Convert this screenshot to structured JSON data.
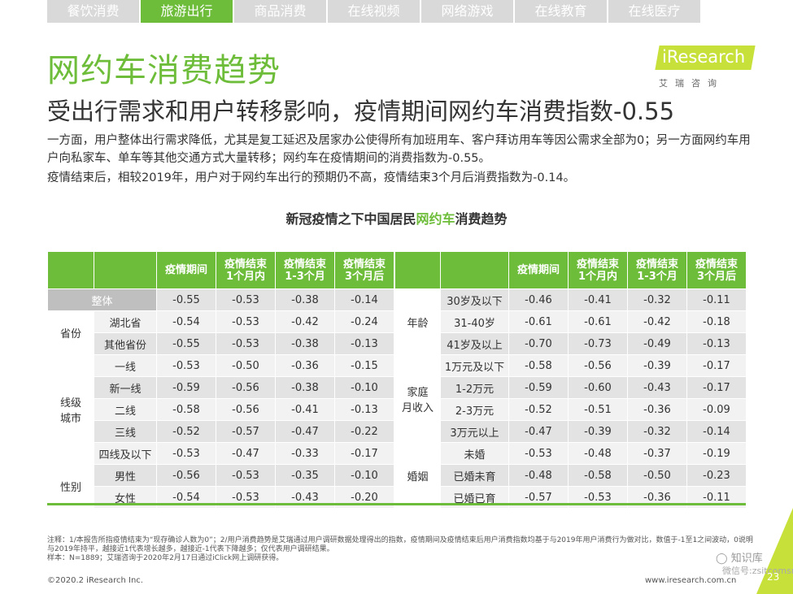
{
  "tabs": [
    {
      "label": "餐饮消费",
      "active": false
    },
    {
      "label": "旅游出行",
      "active": true
    },
    {
      "label": "商品消费",
      "active": false
    },
    {
      "label": "在线视频",
      "active": false
    },
    {
      "label": "网络游戏",
      "active": false
    },
    {
      "label": "在线教育",
      "active": false
    },
    {
      "label": "在线医疗",
      "active": false
    }
  ],
  "title": "网约车消费趋势",
  "subtitle": "受出行需求和用户转移影响，疫情期间网约车消费指数-0.55",
  "logo": {
    "name": "iResearch",
    "cn": "艾瑞咨询"
  },
  "paragraphs": [
    "一方面，用户整体出行需求降低，尤其是复工延迟及居家办公使得所有加班用车、客户拜访用车等因公需求全部为0；另一方面网约车用户向私家车、单车等其他交通方式大量转移；网约车在疫情期间的消费指数为-0.55。",
    "疫情结束后，相较2019年，用户对于网约车出行的预期仍不高，疫情结束3个月后消费指数为-0.14。"
  ],
  "chart_title": {
    "pre": "新冠疫情之下中国居民",
    "highlight": "网约车",
    "post": "消费趋势"
  },
  "headers": [
    "疫情期间",
    "疫情结束\n1个月内",
    "疫情结束\n1-3个月",
    "疫情结束\n3个月后"
  ],
  "left_table": {
    "overall": {
      "label": "整体",
      "values": [
        "-0.55",
        "-0.53",
        "-0.38",
        "-0.14"
      ]
    },
    "groups": [
      {
        "group": "省份",
        "rows": [
          {
            "label": "湖北省",
            "values": [
              "-0.54",
              "-0.53",
              "-0.42",
              "-0.24"
            ]
          },
          {
            "label": "其他省份",
            "values": [
              "-0.55",
              "-0.53",
              "-0.38",
              "-0.13"
            ]
          }
        ]
      },
      {
        "group": "线级\n城市",
        "rows": [
          {
            "label": "一线",
            "values": [
              "-0.53",
              "-0.50",
              "-0.36",
              "-0.15"
            ]
          },
          {
            "label": "新一线",
            "values": [
              "-0.59",
              "-0.56",
              "-0.38",
              "-0.10"
            ]
          },
          {
            "label": "二线",
            "values": [
              "-0.58",
              "-0.56",
              "-0.41",
              "-0.13"
            ]
          },
          {
            "label": "三线",
            "values": [
              "-0.52",
              "-0.57",
              "-0.47",
              "-0.22"
            ]
          },
          {
            "label": "四线及以下",
            "values": [
              "-0.53",
              "-0.47",
              "-0.33",
              "-0.17"
            ]
          }
        ]
      },
      {
        "group": "性别",
        "rows": [
          {
            "label": "男性",
            "values": [
              "-0.56",
              "-0.53",
              "-0.35",
              "-0.10"
            ]
          },
          {
            "label": "女性",
            "values": [
              "-0.54",
              "-0.53",
              "-0.43",
              "-0.20"
            ]
          }
        ]
      }
    ]
  },
  "right_table": {
    "groups": [
      {
        "group": "年龄",
        "rows": [
          {
            "label": "30岁及以下",
            "values": [
              "-0.46",
              "-0.41",
              "-0.32",
              "-0.11"
            ]
          },
          {
            "label": "31-40岁",
            "values": [
              "-0.61",
              "-0.61",
              "-0.42",
              "-0.18"
            ]
          },
          {
            "label": "41岁及以上",
            "values": [
              "-0.70",
              "-0.73",
              "-0.49",
              "-0.13"
            ]
          }
        ]
      },
      {
        "group": "家庭\n月收入",
        "rows": [
          {
            "label": "1万元及以下",
            "values": [
              "-0.58",
              "-0.56",
              "-0.39",
              "-0.17"
            ]
          },
          {
            "label": "1-2万元",
            "values": [
              "-0.59",
              "-0.60",
              "-0.43",
              "-0.17"
            ]
          },
          {
            "label": "2-3万元",
            "values": [
              "-0.52",
              "-0.51",
              "-0.36",
              "-0.09"
            ]
          },
          {
            "label": "3万元以上",
            "values": [
              "-0.47",
              "-0.39",
              "-0.32",
              "-0.14"
            ]
          }
        ]
      },
      {
        "group": "婚姻",
        "rows": [
          {
            "label": "未婚",
            "values": [
              "-0.53",
              "-0.48",
              "-0.37",
              "-0.19"
            ]
          },
          {
            "label": "已婚未育",
            "values": [
              "-0.48",
              "-0.58",
              "-0.50",
              "-0.23"
            ]
          },
          {
            "label": "已婚已育",
            "values": [
              "-0.57",
              "-0.53",
              "-0.36",
              "-0.11"
            ]
          }
        ]
      }
    ]
  },
  "notes": [
    "注释：1/本报告所指疫情结束为“现存确诊人数为0”；2/用户消费趋势是艾瑞通过用户调研数据处理得出的指数，疫情期间及疫情结束后用户消费指数均基于与2019年用户消费行为做对比，数值于-1至1之间波动，0说明与2019年持平，越接近1代表增长越多，越接近-1代表下降越多；仅代表用户调研结果。",
    "样本：N=1889；艾瑞咨询于2020年2月17日通过iClick网上调研获得。"
  ],
  "footer_left": "©2020.2 iResearch Inc.",
  "footer_right": "www.iresearch.com.cn",
  "page_number": "23",
  "watermark": "知识库",
  "watermark_sub": "微信号:zsitcomsn",
  "colors": {
    "accent": "#6ebd3a",
    "logo": "#c8e03a",
    "tab_inactive": "#d9d9d9"
  }
}
